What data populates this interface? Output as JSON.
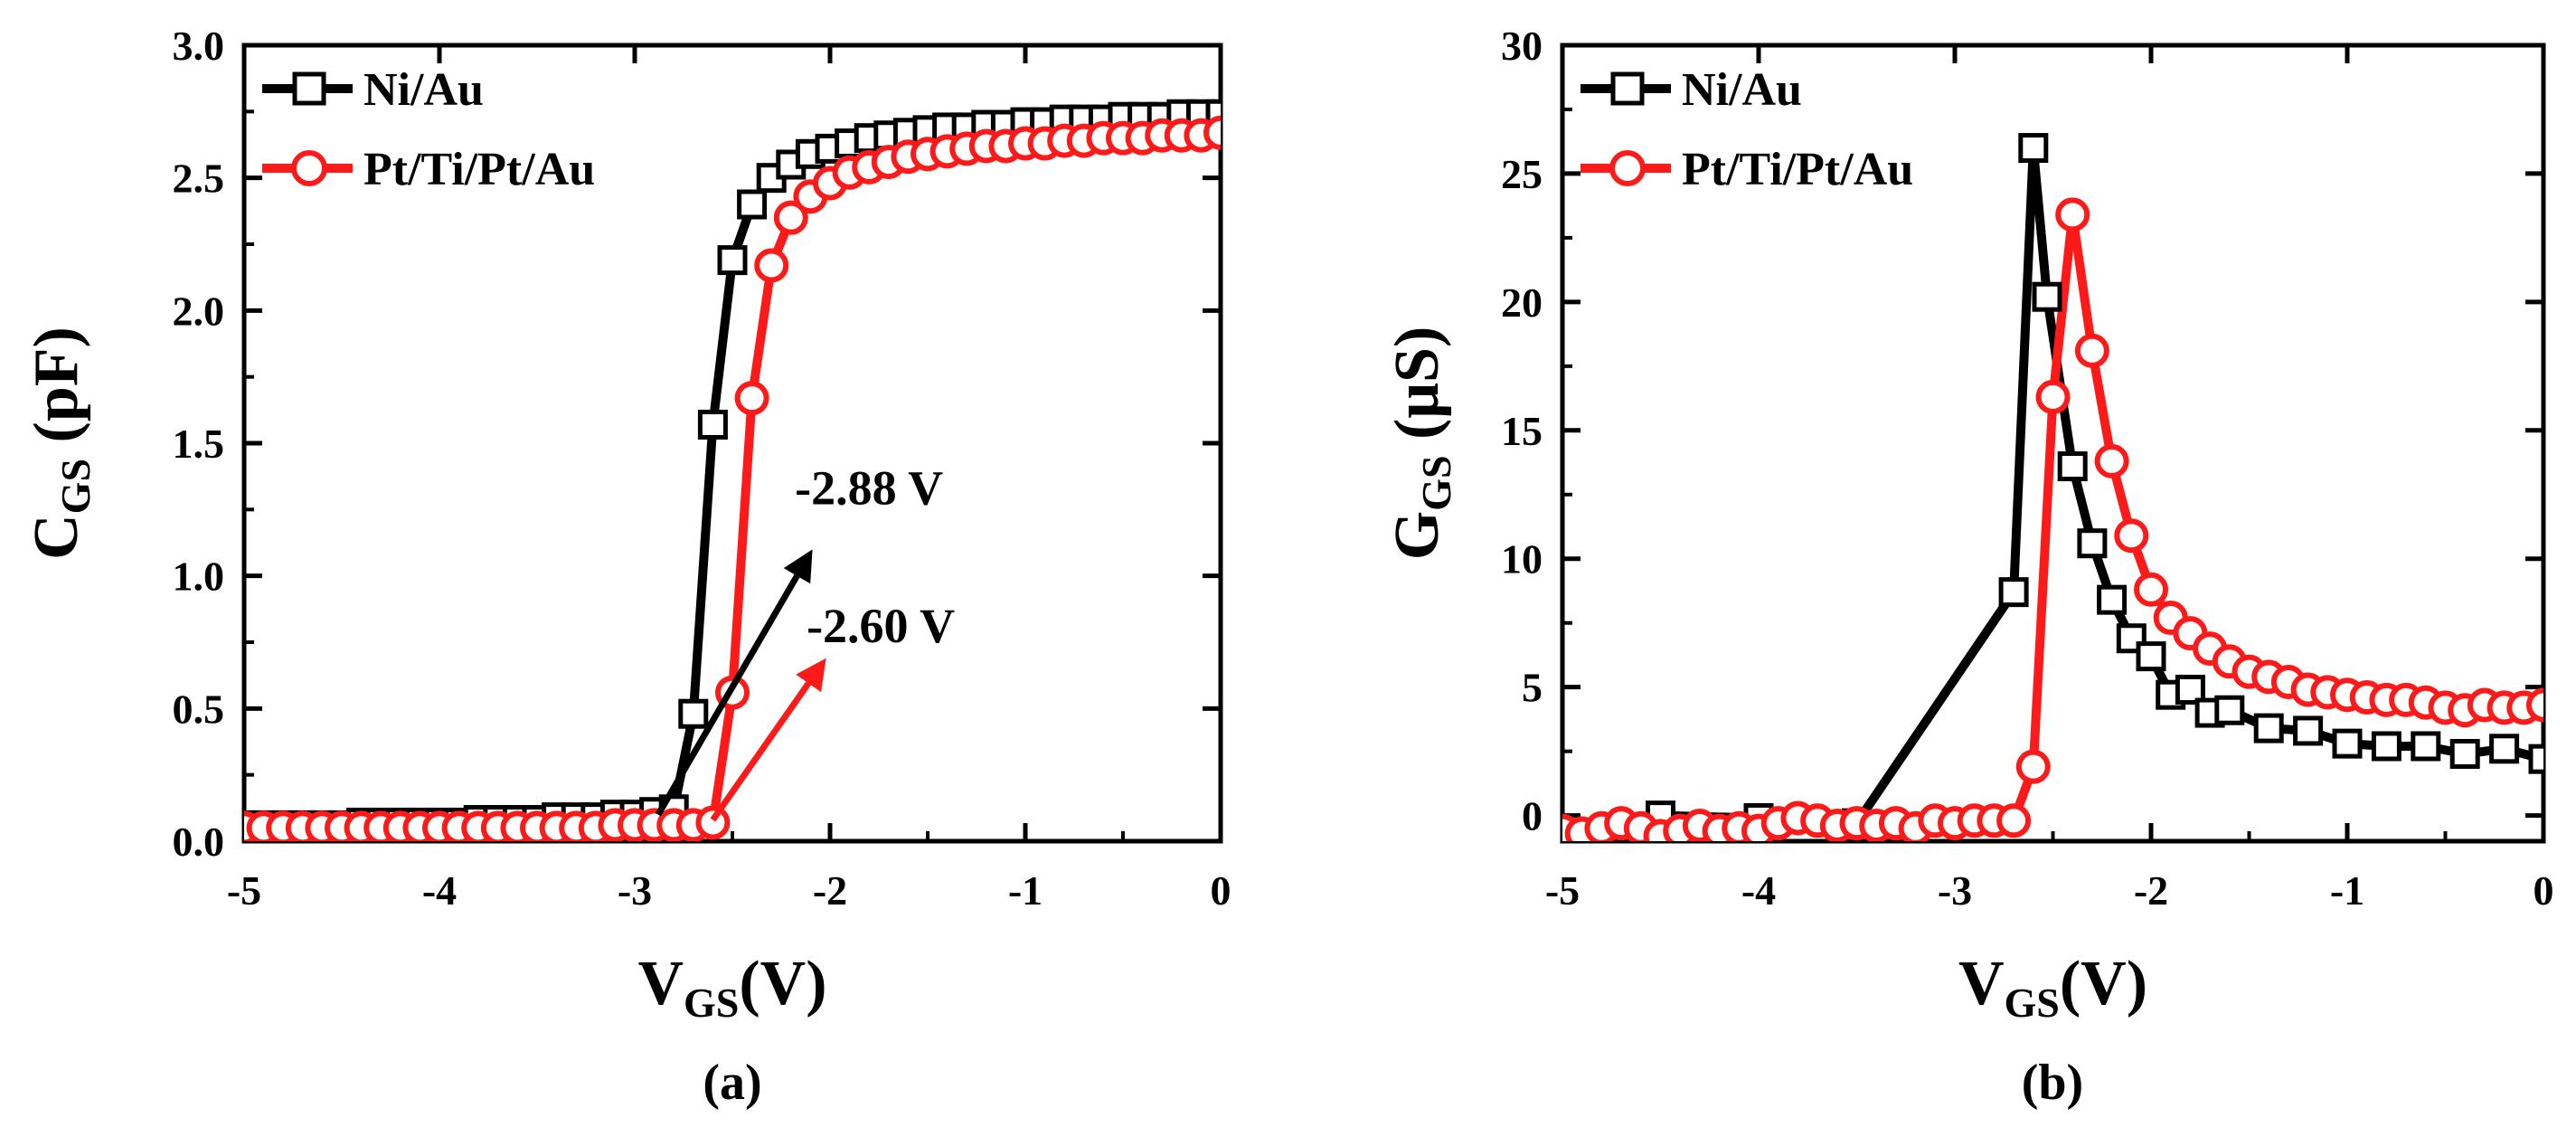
{
  "chart_data": [
    {
      "type": "scatter",
      "panel": "a",
      "caption": "(a)",
      "ylabel_main": "C",
      "ylabel_sub": "GS",
      "ylabel_unit": " (pF)",
      "xlabel_main": "V",
      "xlabel_sub": "GS",
      "xlabel_unit": "(V)",
      "xlim": [
        -5,
        0
      ],
      "ylim": [
        0,
        3
      ],
      "xticks": [
        -5,
        -4,
        -3,
        -2,
        -1,
        0
      ],
      "yticks": [
        0.0,
        0.5,
        1.0,
        1.5,
        2.0,
        2.5,
        3.0
      ],
      "xtick_labels": [
        "-5",
        "-4",
        "-3",
        "-2",
        "-1",
        "0"
      ],
      "ytick_labels": [
        "0.0",
        "0.5",
        "1.0",
        "1.5",
        "2.0",
        "2.5",
        "3.0"
      ],
      "legend": {
        "placement": "top-left",
        "entries": [
          "Ni/Au",
          "Pt/Ti/Pt/Au"
        ]
      },
      "series": [
        {
          "name": "Ni/Au",
          "color": "#000000",
          "marker": "square",
          "x": [
            -5.0,
            -4.9,
            -4.8,
            -4.7,
            -4.6,
            -4.5,
            -4.4,
            -4.3,
            -4.2,
            -4.1,
            -4.0,
            -3.9,
            -3.8,
            -3.7,
            -3.6,
            -3.5,
            -3.4,
            -3.3,
            -3.2,
            -3.1,
            -3.0,
            -2.9,
            -2.8,
            -2.7,
            -2.6,
            -2.5,
            -2.4,
            -2.3,
            -2.2,
            -2.1,
            -2.0,
            -1.9,
            -1.8,
            -1.7,
            -1.6,
            -1.5,
            -1.4,
            -1.3,
            -1.2,
            -1.1,
            -1.0,
            -0.9,
            -0.8,
            -0.7,
            -0.6,
            -0.5,
            -0.4,
            -0.3,
            -0.2,
            -0.1,
            0.0
          ],
          "y": [
            0.06,
            0.06,
            0.06,
            0.06,
            0.06,
            0.06,
            0.07,
            0.07,
            0.07,
            0.07,
            0.07,
            0.07,
            0.08,
            0.08,
            0.08,
            0.08,
            0.09,
            0.09,
            0.09,
            0.1,
            0.1,
            0.11,
            0.12,
            0.48,
            1.57,
            2.19,
            2.4,
            2.5,
            2.55,
            2.59,
            2.61,
            2.63,
            2.65,
            2.66,
            2.67,
            2.68,
            2.69,
            2.69,
            2.7,
            2.7,
            2.71,
            2.71,
            2.72,
            2.72,
            2.72,
            2.73,
            2.73,
            2.73,
            2.74,
            2.74,
            2.74
          ]
        },
        {
          "name": "Pt/Ti/Pt/Au",
          "color": "#ff1a1a",
          "marker": "circle",
          "x": [
            -5.0,
            -4.9,
            -4.8,
            -4.7,
            -4.6,
            -4.5,
            -4.4,
            -4.3,
            -4.2,
            -4.1,
            -4.0,
            -3.9,
            -3.8,
            -3.7,
            -3.6,
            -3.5,
            -3.4,
            -3.3,
            -3.2,
            -3.1,
            -3.0,
            -2.9,
            -2.8,
            -2.7,
            -2.6,
            -2.5,
            -2.4,
            -2.3,
            -2.2,
            -2.1,
            -2.0,
            -1.9,
            -1.8,
            -1.7,
            -1.6,
            -1.5,
            -1.4,
            -1.3,
            -1.2,
            -1.1,
            -1.0,
            -0.9,
            -0.8,
            -0.7,
            -0.6,
            -0.5,
            -0.4,
            -0.3,
            -0.2,
            -0.1,
            0.0
          ],
          "y": [
            0.05,
            0.05,
            0.05,
            0.05,
            0.05,
            0.05,
            0.05,
            0.05,
            0.05,
            0.05,
            0.05,
            0.05,
            0.05,
            0.05,
            0.05,
            0.05,
            0.05,
            0.05,
            0.05,
            0.06,
            0.06,
            0.06,
            0.06,
            0.06,
            0.07,
            0.56,
            1.67,
            2.17,
            2.35,
            2.43,
            2.48,
            2.52,
            2.54,
            2.56,
            2.58,
            2.59,
            2.6,
            2.61,
            2.62,
            2.62,
            2.63,
            2.63,
            2.64,
            2.64,
            2.65,
            2.65,
            2.65,
            2.66,
            2.66,
            2.66,
            2.67
          ]
        }
      ],
      "annotations": [
        {
          "text": "-2.88 V",
          "color": "#000000",
          "arrow_from": [
            -2.88,
            0.1
          ],
          "arrow_to": [
            -2.09,
            1.1
          ],
          "text_at": [
            -2.18,
            1.27
          ]
        },
        {
          "text": "-2.60 V",
          "color": "#ff1a1a",
          "arrow_from": [
            -2.6,
            0.08
          ],
          "arrow_to": [
            -2.02,
            0.69
          ],
          "text_at": [
            -2.12,
            0.75
          ]
        }
      ]
    },
    {
      "type": "scatter",
      "panel": "b",
      "caption": "(b)",
      "ylabel_main": "G",
      "ylabel_sub": "GS",
      "ylabel_unit": " (μS)",
      "xlabel_main": "V",
      "xlabel_sub": "GS",
      "xlabel_unit": "(V)",
      "xlim": [
        -5,
        0
      ],
      "ylim": [
        -1,
        30
      ],
      "xticks": [
        -5,
        -4,
        -3,
        -2,
        -1,
        0
      ],
      "yticks": [
        0,
        5,
        10,
        15,
        20,
        25,
        30
      ],
      "xtick_labels": [
        "-5",
        "-4",
        "-3",
        "-2",
        "-1",
        "0"
      ],
      "ytick_labels": [
        "0",
        "5",
        "10",
        "15",
        "20",
        "25",
        "30"
      ],
      "legend": {
        "placement": "top-left",
        "entries": [
          "Ni/Au",
          "Pt/Ti/Pt/Au"
        ]
      },
      "series": [
        {
          "name": "Ni/Au",
          "color": "#000000",
          "marker": "square",
          "x": [
            -4.5,
            -4.0,
            -3.5,
            -2.7,
            -2.6,
            -2.53,
            -2.4,
            -2.3,
            -2.2,
            -2.1,
            -2.0,
            -1.9,
            -1.8,
            -1.7,
            -1.6,
            -1.4,
            -1.2,
            -1.0,
            -0.8,
            -0.6,
            -0.4,
            -0.2,
            0.0
          ],
          "y": [
            0.0,
            -0.1,
            -0.3,
            8.7,
            26.0,
            20.2,
            13.6,
            10.6,
            8.4,
            6.9,
            6.2,
            4.7,
            4.9,
            4.0,
            4.1,
            3.4,
            3.3,
            2.8,
            2.7,
            2.7,
            2.4,
            2.6,
            2.2
          ]
        },
        {
          "name": "Pt/Ti/Pt/Au",
          "color": "#ff1a1a",
          "marker": "circle",
          "x": [
            -5.0,
            -4.9,
            -4.8,
            -4.7,
            -4.6,
            -4.5,
            -4.4,
            -4.3,
            -4.2,
            -4.1,
            -4.0,
            -3.9,
            -3.8,
            -3.7,
            -3.6,
            -3.5,
            -3.4,
            -3.3,
            -3.2,
            -3.1,
            -3.0,
            -2.9,
            -2.8,
            -2.7,
            -2.6,
            -2.5,
            -2.4,
            -2.3,
            -2.2,
            -2.1,
            -2.0,
            -1.9,
            -1.8,
            -1.7,
            -1.6,
            -1.5,
            -1.4,
            -1.3,
            -1.2,
            -1.1,
            -1.0,
            -0.9,
            -0.8,
            -0.7,
            -0.6,
            -0.5,
            -0.4,
            -0.3,
            -0.2,
            -0.1,
            0.0
          ],
          "y": [
            -0.6,
            -0.7,
            -0.5,
            -0.3,
            -0.5,
            -0.8,
            -0.6,
            -0.4,
            -0.6,
            -0.5,
            -0.6,
            -0.3,
            -0.1,
            -0.2,
            -0.4,
            -0.3,
            -0.4,
            -0.3,
            -0.5,
            -0.2,
            -0.3,
            -0.2,
            -0.2,
            -0.2,
            1.9,
            16.3,
            23.4,
            18.1,
            13.8,
            10.9,
            8.8,
            7.7,
            7.1,
            6.5,
            6.0,
            5.6,
            5.4,
            5.2,
            4.9,
            4.8,
            4.7,
            4.6,
            4.5,
            4.5,
            4.4,
            4.2,
            4.1,
            4.3,
            4.2,
            4.2,
            4.3
          ]
        }
      ]
    }
  ]
}
